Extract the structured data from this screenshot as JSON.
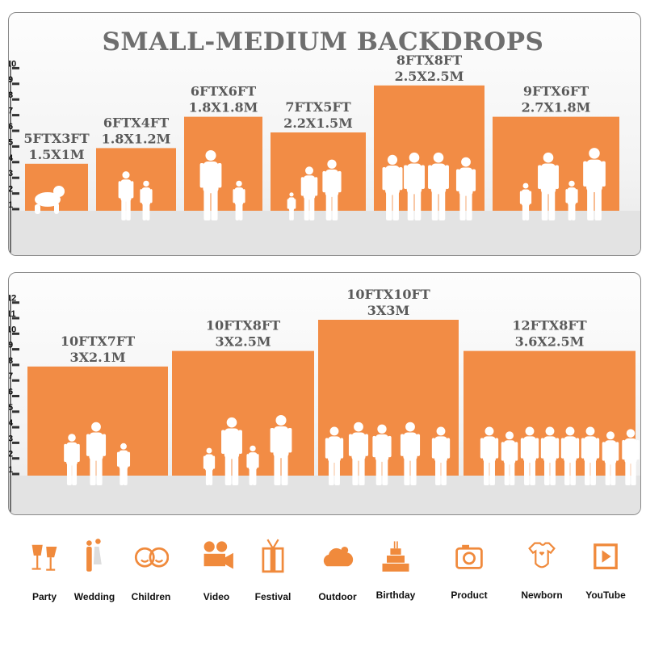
{
  "title": "SMALL-MEDIUM BACKDROPS",
  "colors": {
    "bar": "#f28c45",
    "text": "#5a5a5a",
    "icon": "#f08a3c",
    "floor": "#e3e3e3"
  },
  "panels": [
    {
      "axis_ticks": [
        "1",
        "2",
        "3",
        "4",
        "5",
        "6",
        "7",
        "8",
        "9",
        "10"
      ],
      "backdrops": [
        {
          "ft": "5FTX3FT",
          "m": "1.5X1M",
          "width_ft": 5,
          "height_ft": 3
        },
        {
          "ft": "6FTX4FT",
          "m": "1.8X1.2M",
          "width_ft": 6,
          "height_ft": 4
        },
        {
          "ft": "6FTX6FT",
          "m": "1.8X1.8M",
          "width_ft": 6,
          "height_ft": 6
        },
        {
          "ft": "7FTX5FT",
          "m": "2.2X1.5M",
          "width_ft": 7,
          "height_ft": 5
        },
        {
          "ft": "8FTX8FT",
          "m": "2.5X2.5M",
          "width_ft": 8,
          "height_ft": 8
        },
        {
          "ft": "9FTX6FT",
          "m": "2.7X1.8M",
          "width_ft": 9,
          "height_ft": 6
        }
      ]
    },
    {
      "axis_ticks": [
        "1",
        "2",
        "3",
        "4",
        "5",
        "6",
        "7",
        "8",
        "9",
        "10",
        "11",
        "12"
      ],
      "backdrops": [
        {
          "ft": "10FTX7FT",
          "m": "3X2.1M",
          "width_ft": 10,
          "height_ft": 7
        },
        {
          "ft": "10FTX8FT",
          "m": "3X2.5M",
          "width_ft": 10,
          "height_ft": 8
        },
        {
          "ft": "10FTX10FT",
          "m": "3X3M",
          "width_ft": 10,
          "height_ft": 10
        },
        {
          "ft": "12FTX8FT",
          "m": "3.6X2.5M",
          "width_ft": 12,
          "height_ft": 8
        }
      ]
    }
  ],
  "uses": [
    {
      "label": "Party",
      "icon": "cheers-glasses-icon"
    },
    {
      "label": "Wedding",
      "icon": "wedding-couple-icon"
    },
    {
      "label": "Children",
      "icon": "children-faces-icon"
    },
    {
      "label": "Video",
      "icon": "movie-camera-icon"
    },
    {
      "label": "Festival",
      "icon": "gift-box-icon"
    },
    {
      "label": "Outdoor",
      "icon": "cloud-icon"
    },
    {
      "label": "Birthday",
      "icon": "birthday-cake-icon"
    },
    {
      "label": "Product",
      "icon": "camera-icon"
    },
    {
      "label": "Newborn",
      "icon": "baby-onesie-icon"
    },
    {
      "label": "YouTube",
      "icon": "play-button-icon"
    }
  ]
}
